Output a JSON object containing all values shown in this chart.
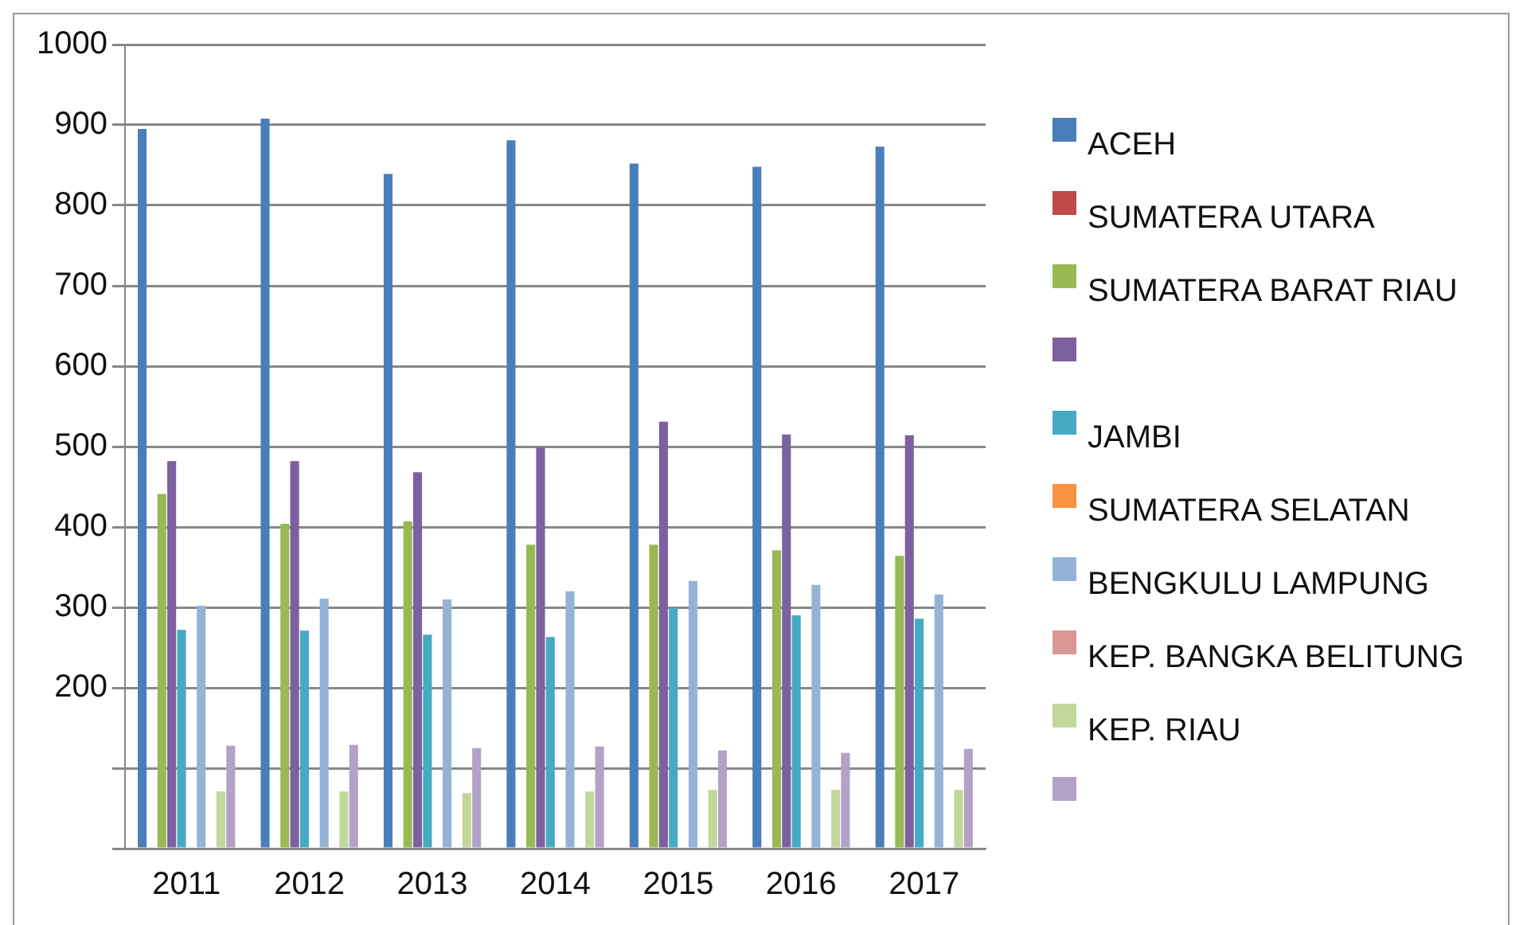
{
  "chart_data": {
    "type": "bar",
    "categories": [
      "2011",
      "2012",
      "2013",
      "2014",
      "2015",
      "2016",
      "2017"
    ],
    "series": [
      {
        "name": "ACEH",
        "color": "#4a7ebb",
        "values": [
          895,
          908,
          839,
          881,
          852,
          848,
          873
        ]
      },
      {
        "name": "SUMATERA UTARA",
        "color": "#be4b48",
        "values": [
          null,
          null,
          null,
          null,
          null,
          null,
          null
        ]
      },
      {
        "name": "SUMATERA BARAT RIAU",
        "color": "#98b954",
        "values": [
          441,
          404,
          407,
          378,
          378,
          371,
          364
        ]
      },
      {
        "color": "#7d60a0",
        "values": [
          482,
          482,
          468,
          499,
          531,
          515,
          514
        ]
      },
      {
        "name": "JAMBI",
        "color": "#46aac5",
        "values": [
          272,
          271,
          266,
          263,
          299,
          290,
          286
        ]
      },
      {
        "name": "SUMATERA SELATAN",
        "color": "#f69240",
        "values": [
          null,
          null,
          null,
          null,
          null,
          null,
          null
        ]
      },
      {
        "name": "BENGKULU LAMPUNG",
        "color": "#95b3d7",
        "values": [
          302,
          311,
          310,
          320,
          333,
          328,
          316
        ]
      },
      {
        "name": "KEP. BANGKA BELITUNG",
        "color": "#d99694",
        "values": [
          null,
          null,
          null,
          null,
          null,
          null,
          null
        ]
      },
      {
        "name": "KEP. RIAU",
        "color": "#c3d69b",
        "values": [
          71,
          71,
          69,
          71,
          73,
          73,
          73
        ]
      },
      {
        "color": "#b3a2c7",
        "values": [
          128,
          129,
          125,
          127,
          122,
          119,
          124
        ]
      }
    ],
    "ylim": [
      0,
      1000
    ],
    "yticks": [
      {
        "value": 0,
        "label": null
      },
      {
        "value": 100,
        "label": null
      },
      200,
      300,
      400,
      500,
      600,
      700,
      800,
      900,
      1000
    ],
    "grid": "y",
    "legend": "right"
  }
}
